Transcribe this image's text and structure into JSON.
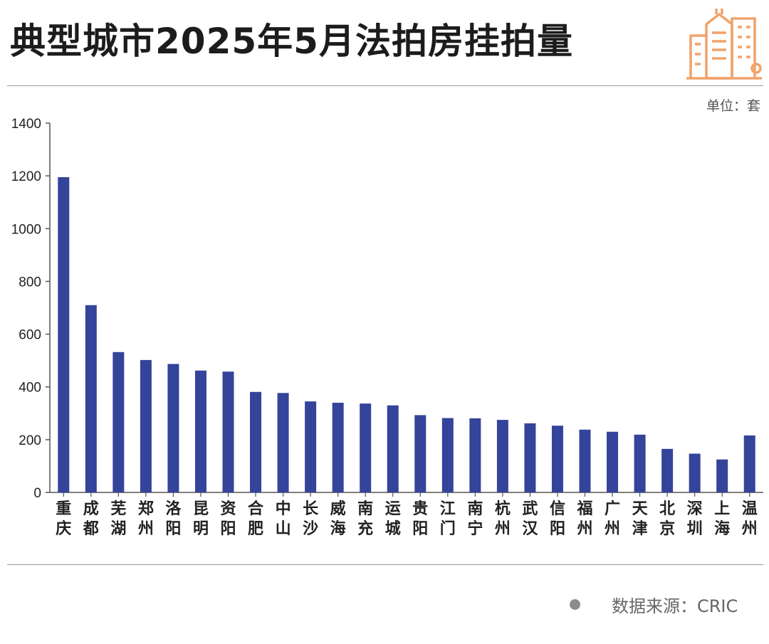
{
  "header": {
    "title": "典型城市2025年5月法拍房挂拍量",
    "logo_icon": "city-buildings-icon",
    "accent_color": "#f0a36b"
  },
  "unit_label": "单位：套",
  "source_label": "数据来源：CRIC",
  "chart_data": {
    "type": "bar",
    "title": "典型城市2025年5月法拍房挂拍量",
    "xlabel": "",
    "ylabel": "",
    "ylim": [
      0,
      1400
    ],
    "yticks": [
      "0",
      "200",
      "400",
      "600",
      "800",
      "1000",
      "1200",
      "1400"
    ],
    "bar_color": "#34449a",
    "grid": false,
    "categories": [
      "重庆",
      "成都",
      "芜湖",
      "郑州",
      "洛阳",
      "昆明",
      "资阳",
      "合肥",
      "中山",
      "长沙",
      "威海",
      "南充",
      "运城",
      "贵阳",
      "江门",
      "南宁",
      "杭州",
      "武汉",
      "信阳",
      "福州",
      "广州",
      "天津",
      "北京",
      "深圳",
      "上海",
      "温州"
    ],
    "values": [
      1195,
      710,
      532,
      502,
      487,
      462,
      458,
      381,
      377,
      345,
      340,
      337,
      330,
      293,
      282,
      281,
      275,
      262,
      253,
      238,
      230,
      219,
      165,
      147,
      125,
      216
    ]
  }
}
